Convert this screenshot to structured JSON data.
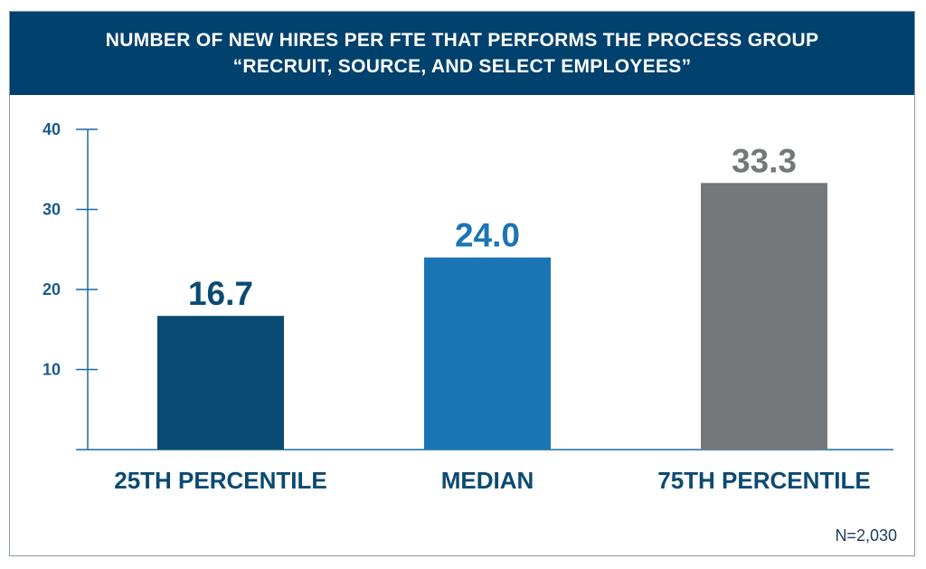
{
  "chart_data": {
    "type": "bar",
    "title": "NUMBER OF NEW HIRES PER FTE THAT PERFORMS THE PROCESS GROUP",
    "subtitle": "“RECRUIT, SOURCE, AND SELECT EMPLOYEES”",
    "categories": [
      "25TH PERCENTILE",
      "MEDIAN",
      "75TH PERCENTILE"
    ],
    "values": [
      16.7,
      24.0,
      33.3
    ],
    "value_labels": [
      "16.7",
      "24.0",
      "33.3"
    ],
    "colors": [
      "#0a4a72",
      "#1a75b5",
      "#74787b"
    ],
    "ylim": [
      0,
      40
    ],
    "yticks": [
      10,
      20,
      30,
      40
    ],
    "xlabel": "",
    "ylabel": "",
    "grid": false,
    "note": "N=2,030"
  },
  "colors": {
    "header_bg": "#00416e",
    "axis": "#1a6ba0",
    "tick_text": "#1a5a8c",
    "category_text": "#0a4a72"
  }
}
